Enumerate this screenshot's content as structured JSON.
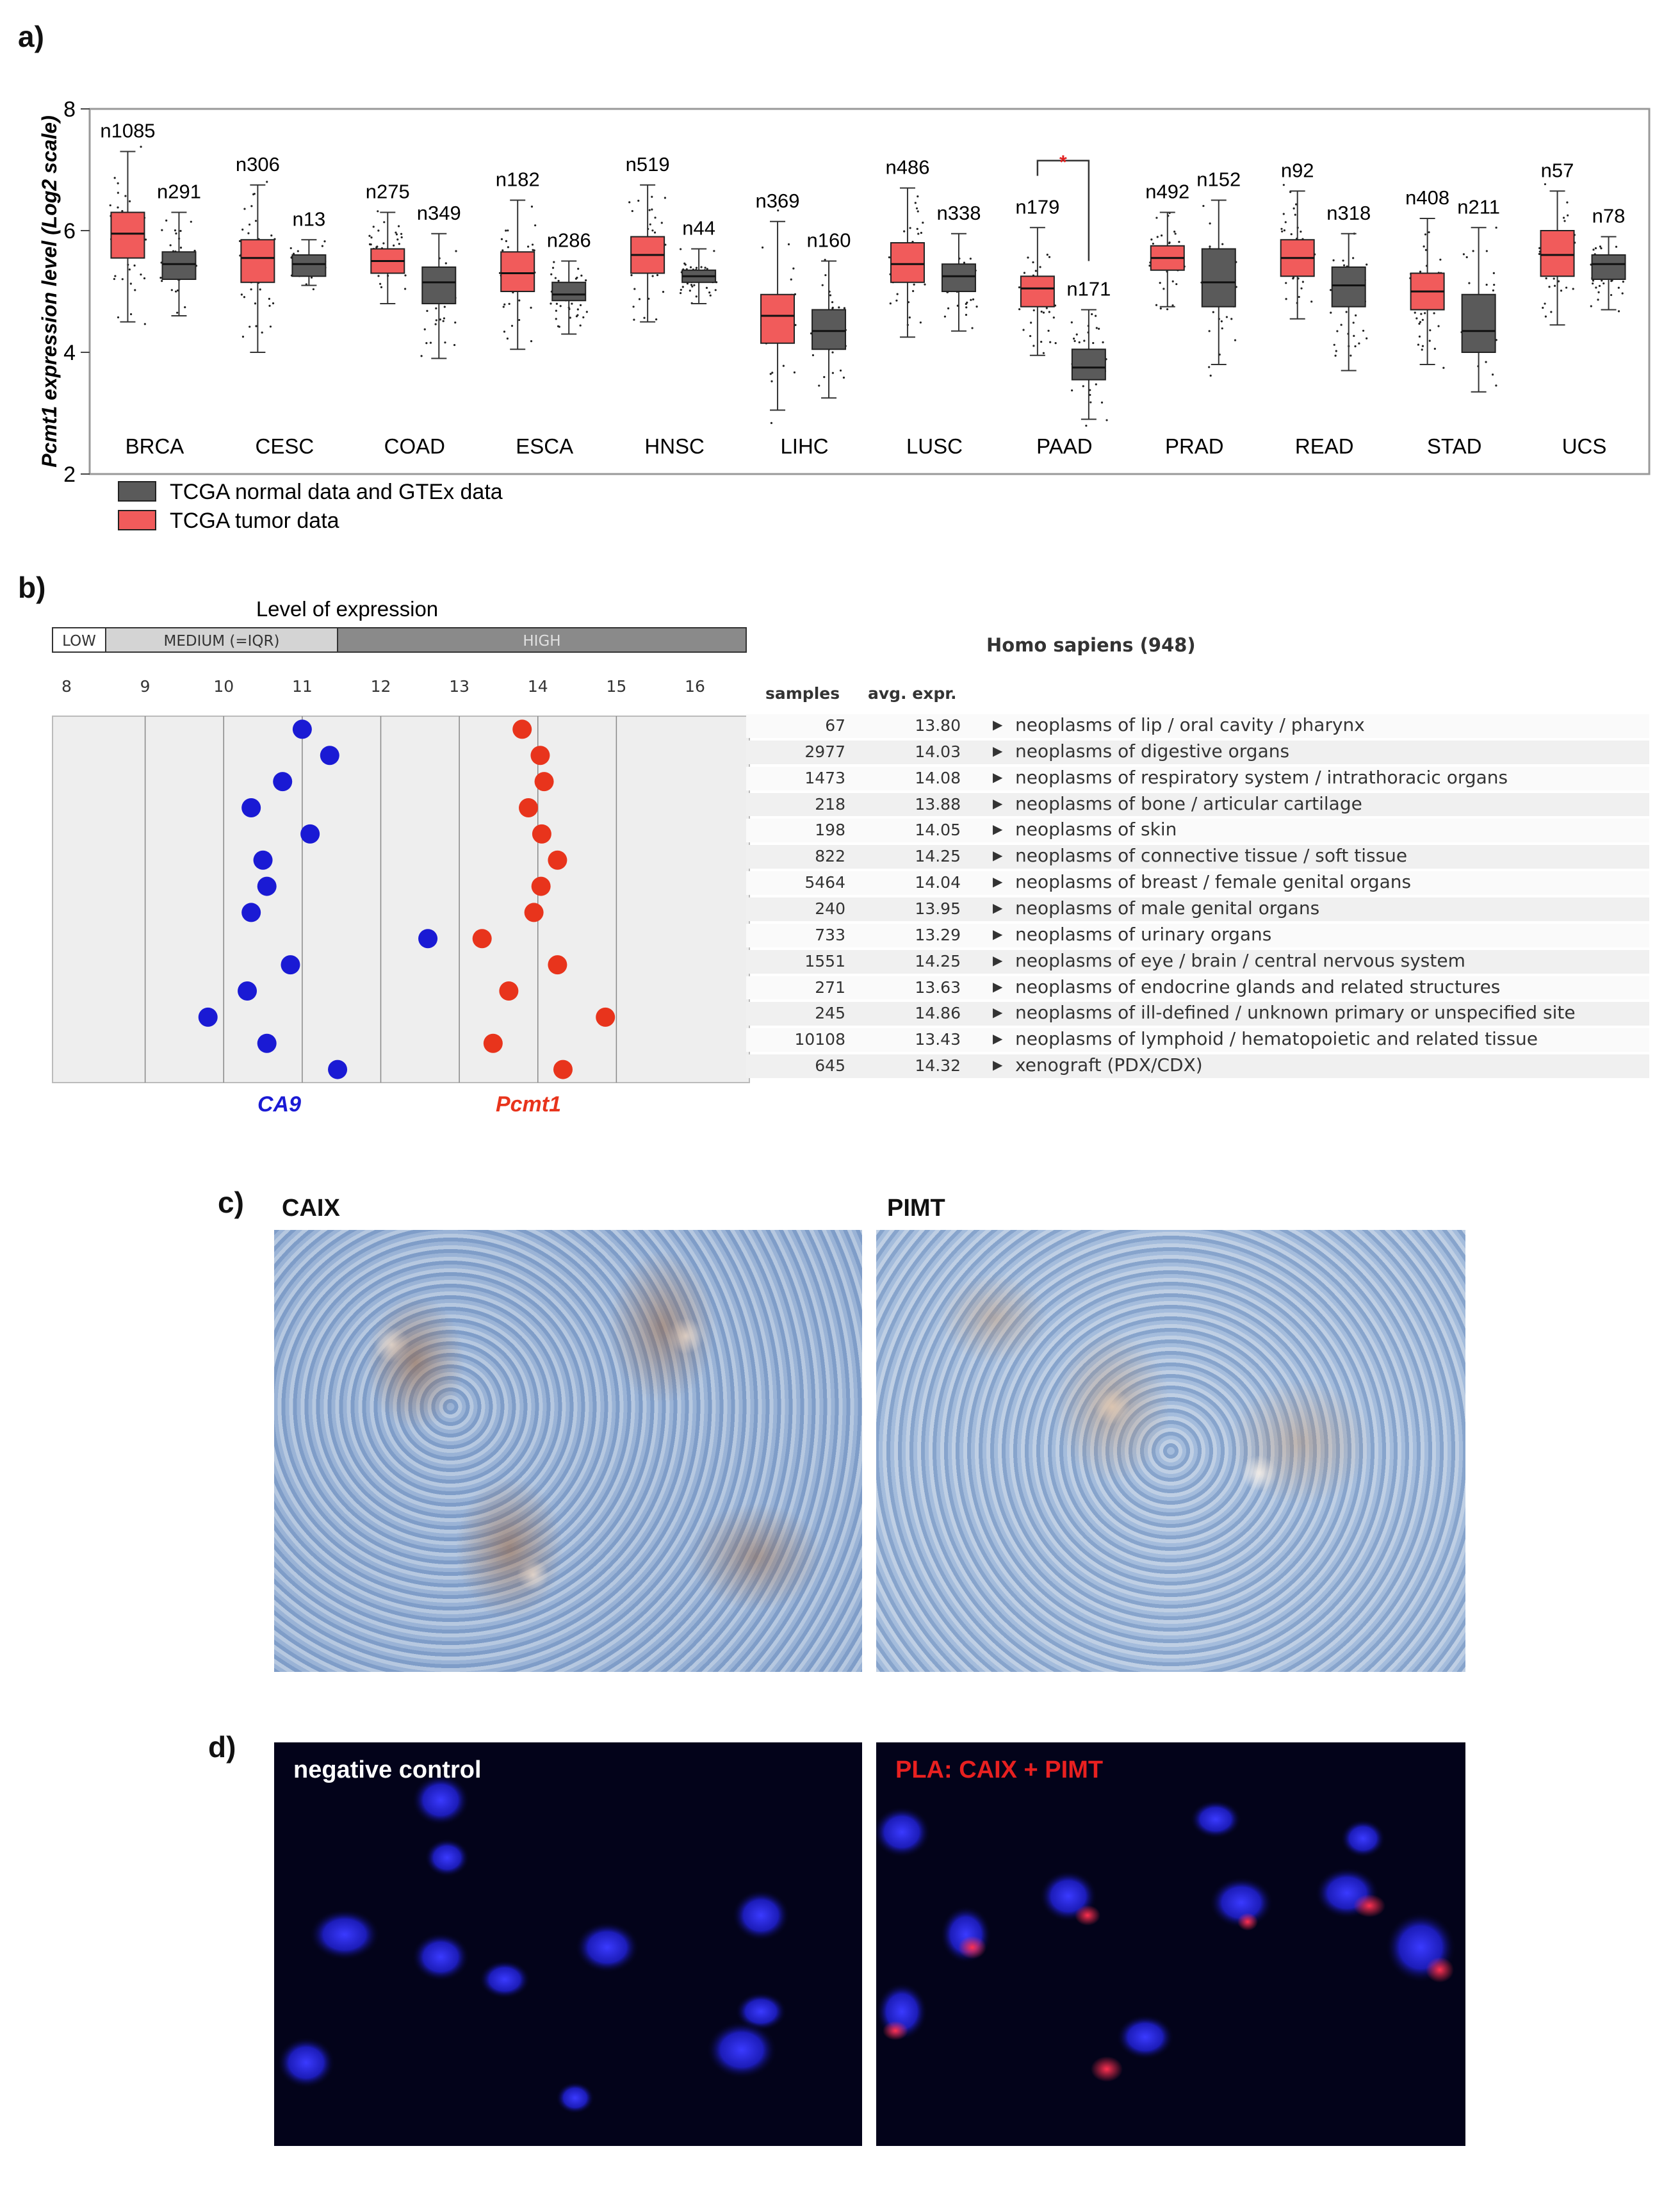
{
  "panels": {
    "a": "a)",
    "b": "b)",
    "c": "c)",
    "d": "d)"
  },
  "colors": {
    "tumor": "#f15b5b",
    "normal": "#5a5a5a",
    "ca9": "#1a1ad4",
    "pcmt1": "#e8341c",
    "highlight": "#e02020"
  },
  "chart_data": [
    {
      "type": "box",
      "ylabel": "Pcmt1 expression level (Log2 scale)",
      "ylim": [
        2,
        8
      ],
      "yticks": [
        "2",
        "4",
        "6",
        "8"
      ],
      "legend_position": "bottom-left",
      "series": [
        {
          "name": "TCGA normal data and GTEx data",
          "color": "#5a5a5a"
        },
        {
          "name": "TCGA tumor data",
          "color": "#f15b5b"
        }
      ],
      "categories": [
        {
          "label": "BRCA",
          "tumor": {
            "n": "n1085",
            "q1": 5.55,
            "median": 5.95,
            "q3": 6.3,
            "min": 4.5,
            "max": 7.3
          },
          "normal": {
            "n": "n291",
            "q1": 5.2,
            "median": 5.45,
            "q3": 5.65,
            "min": 4.6,
            "max": 6.3
          }
        },
        {
          "label": "CESC",
          "tumor": {
            "n": "n306",
            "q1": 5.15,
            "median": 5.55,
            "q3": 5.85,
            "min": 4.0,
            "max": 6.75
          },
          "normal": {
            "n": "n13",
            "q1": 5.25,
            "median": 5.45,
            "q3": 5.6,
            "min": 5.1,
            "max": 5.85
          }
        },
        {
          "label": "COAD",
          "tumor": {
            "n": "n275",
            "q1": 5.3,
            "median": 5.5,
            "q3": 5.7,
            "min": 4.8,
            "max": 6.3
          },
          "normal": {
            "n": "n349",
            "q1": 4.8,
            "median": 5.15,
            "q3": 5.4,
            "min": 3.9,
            "max": 5.95
          }
        },
        {
          "label": "ESCA",
          "tumor": {
            "n": "n182",
            "q1": 5.0,
            "median": 5.3,
            "q3": 5.65,
            "min": 4.05,
            "max": 6.5
          },
          "normal": {
            "n": "n286",
            "q1": 4.85,
            "median": 4.95,
            "q3": 5.15,
            "min": 4.3,
            "max": 5.5
          }
        },
        {
          "label": "HNSC",
          "tumor": {
            "n": "n519",
            "q1": 5.3,
            "median": 5.6,
            "q3": 5.9,
            "min": 4.5,
            "max": 6.75
          },
          "normal": {
            "n": "n44",
            "q1": 5.15,
            "median": 5.25,
            "q3": 5.35,
            "min": 4.8,
            "max": 5.7
          }
        },
        {
          "label": "LIHC",
          "tumor": {
            "n": "n369",
            "q1": 4.15,
            "median": 4.6,
            "q3": 4.95,
            "min": 3.05,
            "max": 6.15
          },
          "normal": {
            "n": "n160",
            "q1": 4.05,
            "median": 4.35,
            "q3": 4.7,
            "min": 3.25,
            "max": 5.5
          }
        },
        {
          "label": "LUSC",
          "tumor": {
            "n": "n486",
            "q1": 5.15,
            "median": 5.45,
            "q3": 5.8,
            "min": 4.25,
            "max": 6.7
          },
          "normal": {
            "n": "n338",
            "q1": 5.0,
            "median": 5.25,
            "q3": 5.45,
            "min": 4.35,
            "max": 5.95
          }
        },
        {
          "label": "PAAD",
          "tumor": {
            "n": "n179",
            "q1": 4.75,
            "median": 5.05,
            "q3": 5.25,
            "min": 3.95,
            "max": 6.05
          },
          "normal": {
            "n": "n171",
            "q1": 3.55,
            "median": 3.75,
            "q3": 4.05,
            "min": 2.9,
            "max": 4.7
          }
        },
        {
          "label": "PRAD",
          "tumor": {
            "n": "n492",
            "q1": 5.35,
            "median": 5.55,
            "q3": 5.75,
            "min": 4.75,
            "max": 6.3
          },
          "normal": {
            "n": "n152",
            "q1": 4.75,
            "median": 5.15,
            "q3": 5.7,
            "min": 3.8,
            "max": 6.5
          }
        },
        {
          "label": "READ",
          "tumor": {
            "n": "n92",
            "q1": 5.25,
            "median": 5.55,
            "q3": 5.85,
            "min": 4.55,
            "max": 6.65
          },
          "normal": {
            "n": "n318",
            "q1": 4.75,
            "median": 5.1,
            "q3": 5.4,
            "min": 3.7,
            "max": 5.95
          }
        },
        {
          "label": "STAD",
          "tumor": {
            "n": "n408",
            "q1": 4.7,
            "median": 5.0,
            "q3": 5.3,
            "min": 3.8,
            "max": 6.2
          },
          "normal": {
            "n": "n211",
            "q1": 4.0,
            "median": 4.35,
            "q3": 4.95,
            "min": 3.35,
            "max": 6.05
          }
        },
        {
          "label": "UCS",
          "tumor": {
            "n": "n57",
            "q1": 5.25,
            "median": 5.6,
            "q3": 6.0,
            "min": 4.45,
            "max": 6.65
          },
          "normal": {
            "n": "n78",
            "q1": 5.2,
            "median": 5.45,
            "q3": 5.6,
            "min": 4.7,
            "max": 5.9
          }
        }
      ]
    },
    {
      "type": "scatter",
      "title": "Level of expression",
      "level_bar": [
        "LOW",
        "MEDIUM (=IQR)",
        "HIGH"
      ],
      "xticks": [
        "8",
        "9",
        "10",
        "11",
        "12",
        "13",
        "14",
        "15",
        "16"
      ],
      "xlim": [
        8,
        16
      ],
      "series": [
        {
          "name": "CA9",
          "color": "#1a1ad4",
          "values": [
            11.0,
            11.35,
            10.75,
            10.35,
            11.1,
            10.5,
            10.55,
            10.35,
            12.6,
            10.85,
            10.3,
            9.8,
            10.55,
            11.45
          ]
        },
        {
          "name": "Pcmt1",
          "color": "#e8341c",
          "values": [
            13.8,
            14.03,
            14.08,
            13.88,
            14.05,
            14.25,
            14.04,
            13.95,
            13.29,
            14.25,
            13.63,
            14.86,
            13.43,
            14.32
          ]
        }
      ],
      "table": {
        "organism": "Homo sapiens (948)",
        "headers": [
          "samples",
          "avg. expr."
        ],
        "rows": [
          {
            "samples": "67",
            "avg": "13.80",
            "label": "neoplasms of lip / oral cavity / pharynx"
          },
          {
            "samples": "2977",
            "avg": "14.03",
            "label": "neoplasms of digestive organs"
          },
          {
            "samples": "1473",
            "avg": "14.08",
            "label": "neoplasms of respiratory system / intrathoracic organs"
          },
          {
            "samples": "218",
            "avg": "13.88",
            "label": "neoplasms of bone / articular cartilage"
          },
          {
            "samples": "198",
            "avg": "14.05",
            "label": "neoplasms of skin"
          },
          {
            "samples": "822",
            "avg": "14.25",
            "label": "neoplasms of connective tissue / soft tissue"
          },
          {
            "samples": "5464",
            "avg": "14.04",
            "label": "neoplasms of breast / female genital organs"
          },
          {
            "samples": "240",
            "avg": "13.95",
            "label": "neoplasms of male genital organs"
          },
          {
            "samples": "733",
            "avg": "13.29",
            "label": "neoplasms of urinary organs"
          },
          {
            "samples": "1551",
            "avg": "14.25",
            "label": "neoplasms of eye / brain / central nervous system"
          },
          {
            "samples": "271",
            "avg": "13.63",
            "label": "neoplasms of endocrine glands and related structures"
          },
          {
            "samples": "245",
            "avg": "14.86",
            "label": "neoplasms of ill-defined / unknown primary or unspecified site"
          },
          {
            "samples": "10108",
            "avg": "13.43",
            "label": "neoplasms of lymphoid / hematopoietic and related tissue"
          },
          {
            "samples": "645",
            "avg": "14.32",
            "label": "xenograft (PDX/CDX)"
          }
        ]
      }
    }
  ],
  "images": {
    "c_left": "CAIX",
    "c_right": "PIMT",
    "d_left": "negative control",
    "d_right": "PLA: CAIX + PIMT"
  }
}
